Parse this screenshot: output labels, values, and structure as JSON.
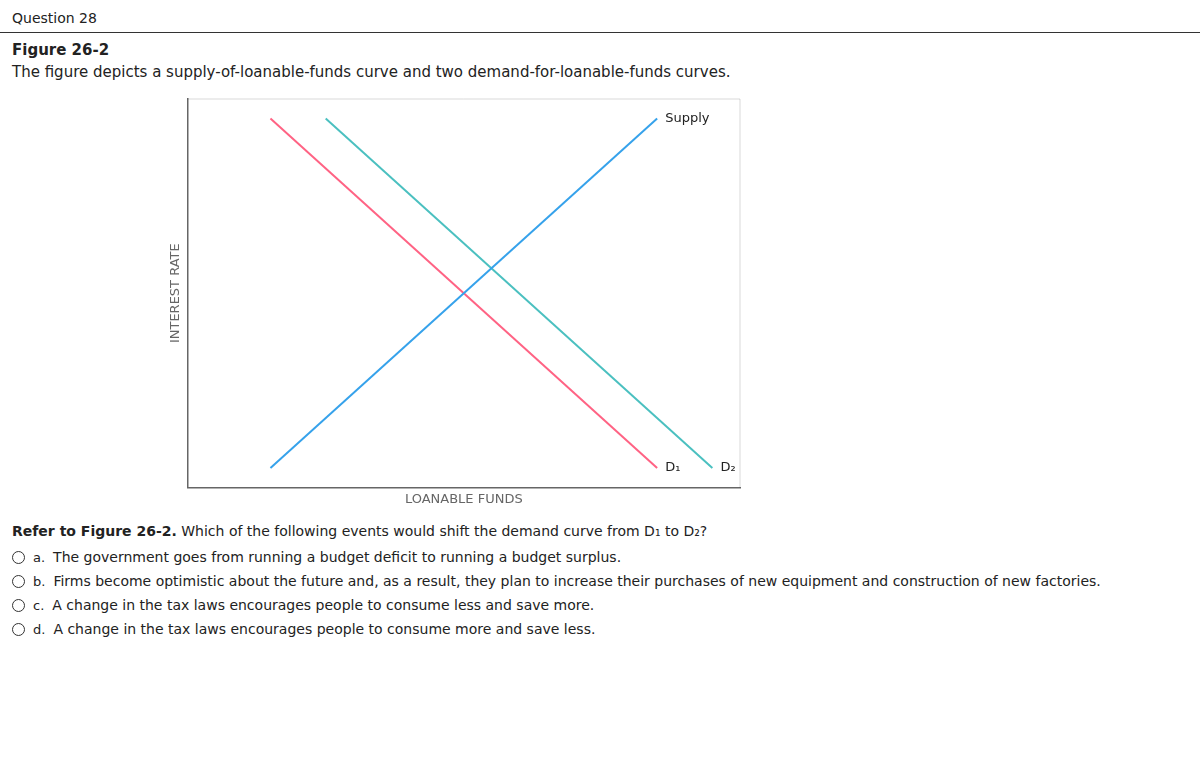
{
  "chart_data": {
    "type": "line",
    "header": "Question 28",
    "title": "Figure 26-2",
    "subtitle": "The figure depicts a supply-of-loanable-funds curve and two demand-for-loanable-funds curves.",
    "xlabel": "LOANABLE FUNDS",
    "ylabel": "INTEREST RATE",
    "series": [
      {
        "name": "Supply",
        "x": [
          0.15,
          0.85
        ],
        "values": [
          0.05,
          0.95
        ]
      },
      {
        "name": "D₁",
        "x": [
          0.15,
          0.85
        ],
        "values": [
          0.95,
          0.05
        ]
      },
      {
        "name": "D₂",
        "x": [
          0.25,
          0.95
        ],
        "values": [
          0.95,
          0.05
        ]
      }
    ],
    "xlim": [
      0,
      1
    ],
    "ylim": [
      0,
      1
    ],
    "tick_labels": false,
    "grid": false,
    "question_bold": "Refer to Figure 26-2.",
    "question_text": " Which of the following events would shift the demand curve from D₁ to D₂?",
    "options": [
      {
        "label": "a.",
        "text": "The government goes from running a budget deficit to running a budget surplus."
      },
      {
        "label": "b.",
        "text": "Firms become optimistic about the future and, as a result, they plan to increase their purchases of new equipment and construction of new factories."
      },
      {
        "label": "c.",
        "text": "A change in the tax laws encourages people to consume less and save more."
      },
      {
        "label": "d.",
        "text": "A change in the tax laws encourages people to consume more and save less."
      }
    ]
  }
}
